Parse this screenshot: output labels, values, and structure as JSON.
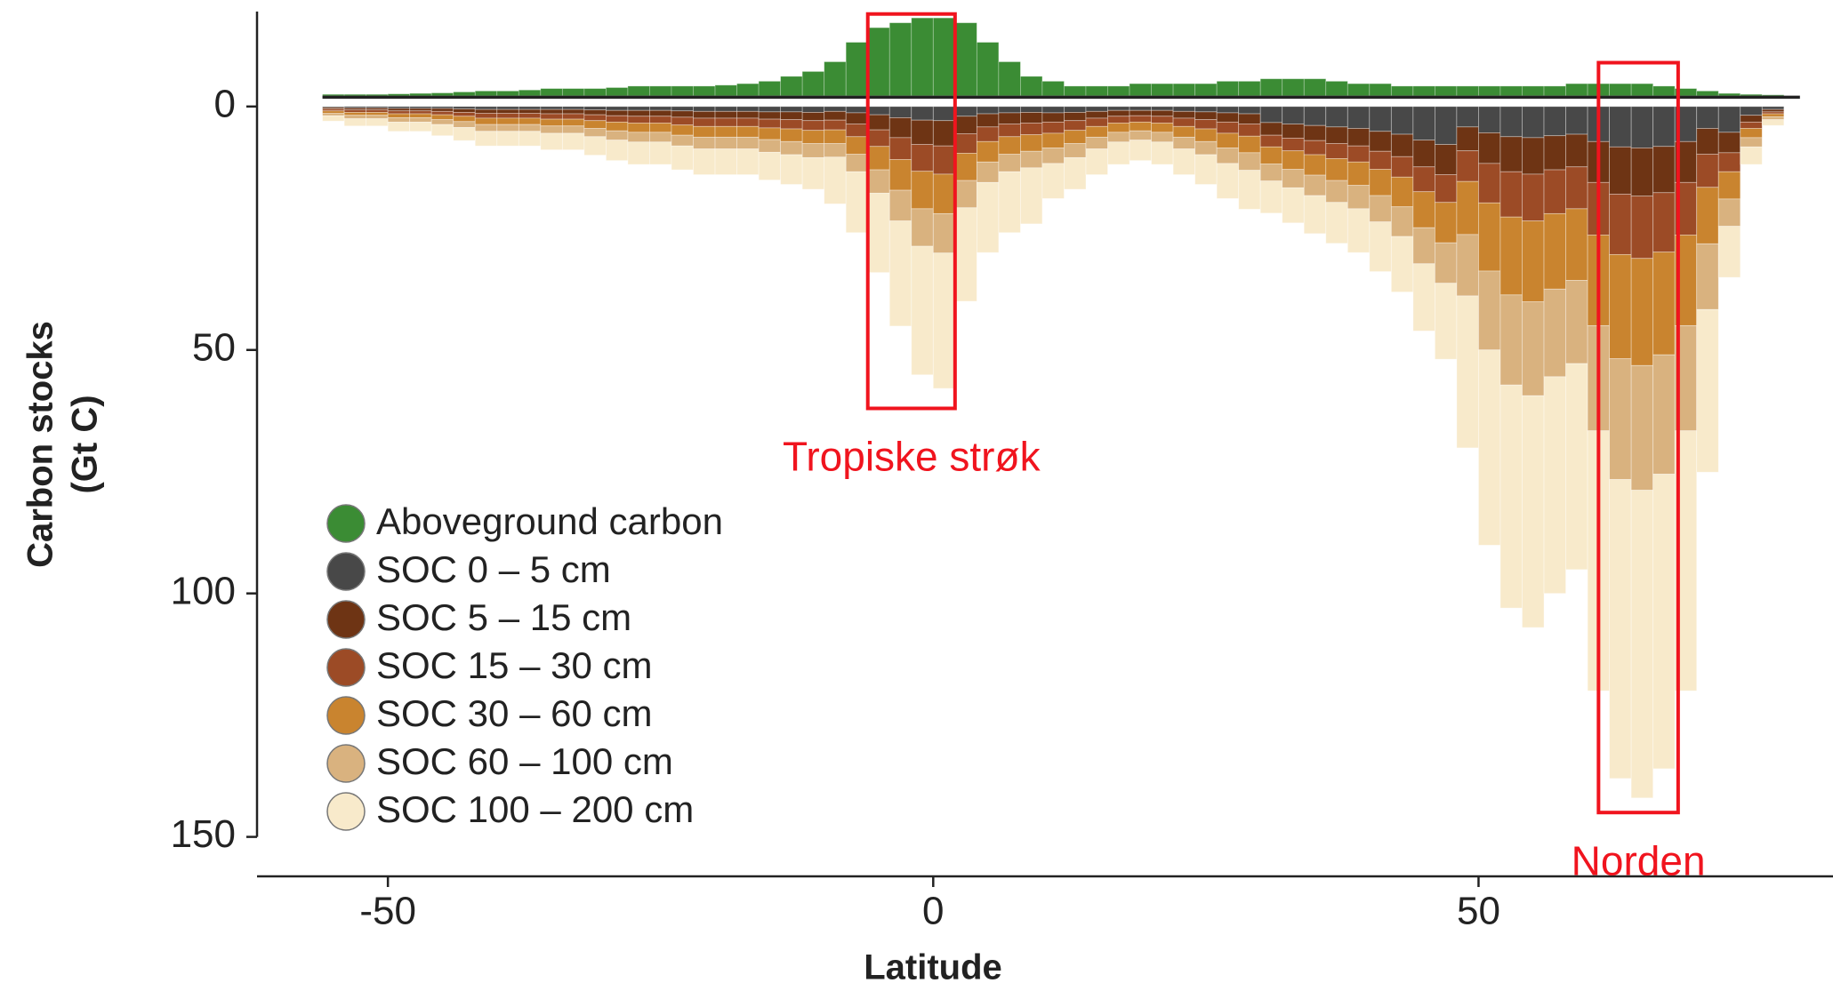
{
  "chart_data": {
    "type": "stacked_histogram",
    "xlabel": "Latitude",
    "ylabel": [
      "Carbon stocks",
      "(Gt C)"
    ],
    "xlim": [
      -62,
      82.5
    ],
    "ylim": [
      -19.5,
      150
    ],
    "y_inverted": true,
    "xticks": [
      -50,
      0,
      50
    ],
    "yticks": [
      0,
      50,
      100,
      150
    ],
    "legend": "lower left",
    "bins": [
      -56,
      -54,
      -52,
      -50,
      -48,
      -46,
      -44,
      -42,
      -40,
      -38,
      -36,
      -34,
      -32,
      -30,
      -28,
      -26,
      -24,
      -22,
      -20,
      -18,
      -16,
      -14,
      -12,
      -10,
      -8,
      -6,
      -4,
      -2,
      0,
      2,
      4,
      6,
      8,
      10,
      12,
      14,
      16,
      18,
      20,
      22,
      24,
      26,
      28,
      30,
      32,
      34,
      36,
      38,
      40,
      42,
      44,
      46,
      48,
      50,
      52,
      54,
      56,
      58,
      60,
      62,
      64,
      66,
      68,
      70,
      72,
      74,
      76,
      78
    ],
    "series": [
      {
        "name": "Aboveground carbon",
        "color": "#3b8c34",
        "stack": "up",
        "values": [
          0.3,
          0.3,
          0.3,
          0.4,
          0.5,
          0.6,
          0.8,
          1,
          1,
          1.2,
          1.5,
          1.5,
          1.5,
          1.7,
          2,
          2,
          2,
          2,
          2.2,
          2.5,
          3,
          4,
          5,
          7,
          11,
          14,
          15,
          16,
          16,
          15,
          11,
          7,
          4,
          3,
          2,
          2,
          2,
          2.5,
          2.5,
          2.5,
          2.5,
          3,
          3,
          3.5,
          3.5,
          3.5,
          3,
          2.5,
          2.5,
          2,
          2,
          2,
          2,
          2,
          2,
          2,
          2,
          2.5,
          2.5,
          2.5,
          2.5,
          2,
          1.5,
          1,
          0.5,
          0.3,
          0.2
        ]
      },
      {
        "name": "SOC 0 – 5 cm",
        "color": "#484848",
        "stack": "down",
        "values": [
          0.2,
          0.3,
          0.3,
          0.4,
          0.4,
          0.4,
          0.5,
          0.6,
          0.6,
          0.6,
          0.6,
          0.6,
          0.7,
          0.8,
          0.8,
          0.8,
          0.9,
          1.0,
          1.0,
          1.0,
          1.1,
          1.1,
          1.2,
          1.0,
          1.3,
          1.7,
          2.3,
          2.8,
          2.9,
          2.0,
          1.5,
          1.3,
          1.2,
          1.3,
          1.2,
          1.0,
          0.8,
          0.8,
          0.8,
          1.0,
          1.1,
          1.3,
          1.5,
          3.3,
          3.6,
          3.9,
          4.2,
          4.5,
          5.1,
          5.7,
          6.9,
          7.8,
          4.2,
          5.4,
          6.2,
          6.4,
          6,
          5.7,
          7.2,
          8.3,
          8.5,
          8.2,
          7.2,
          4.5,
          5.3,
          1.8,
          0.6
        ]
      },
      {
        "name": "SOC 5 – 15 cm",
        "color": "#6e3414",
        "stack": "down",
        "values": [
          0.3,
          0.4,
          0.4,
          0.5,
          0.5,
          0.6,
          0.7,
          0.8,
          0.8,
          0.8,
          0.9,
          0.9,
          1,
          1.1,
          1.2,
          1.2,
          1.3,
          1.4,
          1.4,
          1.4,
          1.5,
          1.6,
          1.7,
          1.8,
          2.3,
          3.1,
          4.1,
          5.0,
          5.2,
          3.6,
          2.7,
          2.3,
          2.2,
          1.9,
          1.7,
          1.4,
          1.2,
          1.1,
          1.2,
          1.4,
          1.6,
          1.9,
          2.1,
          2.6,
          2.9,
          3.1,
          3.4,
          3.6,
          4.1,
          4.6,
          5.5,
          6.2,
          4.9,
          6.3,
          7.2,
          7.5,
          7,
          6.7,
          8.4,
          9.7,
          9.9,
          9.5,
          8.4,
          5.3,
          4.2,
          1.4,
          0.5
        ]
      },
      {
        "name": "SOC 15 – 30 cm",
        "color": "#9c4b26",
        "stack": "down",
        "values": [
          0.4,
          0.5,
          0.5,
          0.6,
          0.6,
          0.7,
          0.8,
          1,
          1,
          1,
          1.1,
          1.1,
          1.2,
          1.3,
          1.4,
          1.4,
          1.6,
          1.7,
          1.7,
          1.7,
          1.8,
          1.9,
          2.0,
          2.0,
          2.6,
          3.4,
          4.5,
          5.5,
          5.8,
          4.0,
          3.0,
          2.6,
          2.4,
          2.3,
          2.0,
          1.7,
          1.4,
          1.3,
          1.4,
          1.7,
          1.9,
          2.3,
          2.5,
          2.4,
          2.6,
          2.9,
          3.1,
          3.3,
          3.7,
          4.2,
          5.1,
          5.7,
          6.3,
          8.1,
          9.3,
          9.6,
          9,
          8.6,
          10.8,
          12.4,
          12.8,
          12.2,
          10.8,
          6.8,
          3.9,
          1.3,
          0.4
        ]
      },
      {
        "name": "SOC 30 – 60 cm",
        "color": "#c9842f",
        "stack": "down",
        "values": [
          0.5,
          0.6,
          0.6,
          0.8,
          0.8,
          1.0,
          1.1,
          1.3,
          1.3,
          1.3,
          1.4,
          1.4,
          1.6,
          1.8,
          1.9,
          1.9,
          2.1,
          2.2,
          2.2,
          2.2,
          2.4,
          2.6,
          2.7,
          2.8,
          3.6,
          4.8,
          6.3,
          7.7,
          8.1,
          5.6,
          4.2,
          3.6,
          3.4,
          3.0,
          2.7,
          2.2,
          1.9,
          1.8,
          1.9,
          2.2,
          2.6,
          3.0,
          3.4,
          3.5,
          3.8,
          4.2,
          4.5,
          4.8,
          5.4,
          6.1,
          7.4,
          8.3,
          10.9,
          14.0,
          16.0,
          16.6,
          15.5,
          14.7,
          18.6,
          21.4,
          22.0,
          21.1,
          18.6,
          11.6,
          5.6,
          1.9,
          0.6
        ]
      },
      {
        "name": "SOC 60 – 100 cm",
        "color": "#d9b27f",
        "stack": "down",
        "values": [
          0.5,
          0.7,
          0.7,
          0.9,
          0.9,
          1.0,
          1.2,
          1.4,
          1.4,
          1.4,
          1.5,
          1.5,
          1.7,
          1.9,
          2.0,
          2.0,
          2.2,
          2.4,
          2.4,
          2.4,
          2.6,
          2.7,
          2.9,
          2.8,
          3.6,
          4.8,
          6.3,
          7.7,
          8.1,
          5.6,
          4.2,
          3.6,
          3.4,
          3.2,
          2.9,
          2.4,
          2.0,
          1.9,
          2.0,
          2.4,
          2.7,
          3.2,
          3.6,
          3.5,
          3.8,
          4.2,
          4.5,
          4.8,
          5.4,
          6.1,
          7.4,
          8.3,
          12.6,
          16.2,
          18.5,
          19.3,
          18,
          17.1,
          21.6,
          24.8,
          25.6,
          24.5,
          21.6,
          13.5,
          5.6,
          1.9,
          0.6
        ]
      },
      {
        "name": "SOC 100 – 200 cm",
        "color": "#f8eacb",
        "stack": "down",
        "values": [
          1.1,
          1.5,
          1.5,
          1.9,
          1.9,
          2.3,
          2.7,
          3.0,
          3.0,
          3.0,
          3.4,
          3.4,
          3.8,
          4.2,
          4.6,
          4.6,
          4.9,
          5.3,
          5.3,
          5.3,
          5.7,
          6.1,
          6.5,
          9.6,
          12.5,
          16.3,
          21.6,
          26.4,
          27.8,
          19.2,
          14.4,
          12.5,
          11.5,
          7.2,
          6.5,
          5.3,
          4.6,
          4.2,
          4.6,
          5.3,
          6.1,
          7.2,
          8.0,
          6.6,
          7.2,
          7.8,
          8.4,
          9.0,
          10.2,
          11.4,
          13.8,
          15.6,
          31.2,
          40.1,
          45.8,
          47.6,
          44.5,
          42.3,
          53.4,
          61.4,
          63.2,
          60.5,
          53.4,
          33.4,
          10.5,
          3.6,
          1.2
        ]
      }
    ],
    "annotations": [
      {
        "text": "Tropiske strøk",
        "color": "#f0141e",
        "box": {
          "x": [
            -6,
            2
          ],
          "y": [
            -19,
            62
          ]
        }
      },
      {
        "text": "Norden",
        "color": "#f0141e",
        "box": {
          "x": [
            61,
            68.3
          ],
          "y": [
            -9,
            145
          ]
        }
      }
    ]
  }
}
